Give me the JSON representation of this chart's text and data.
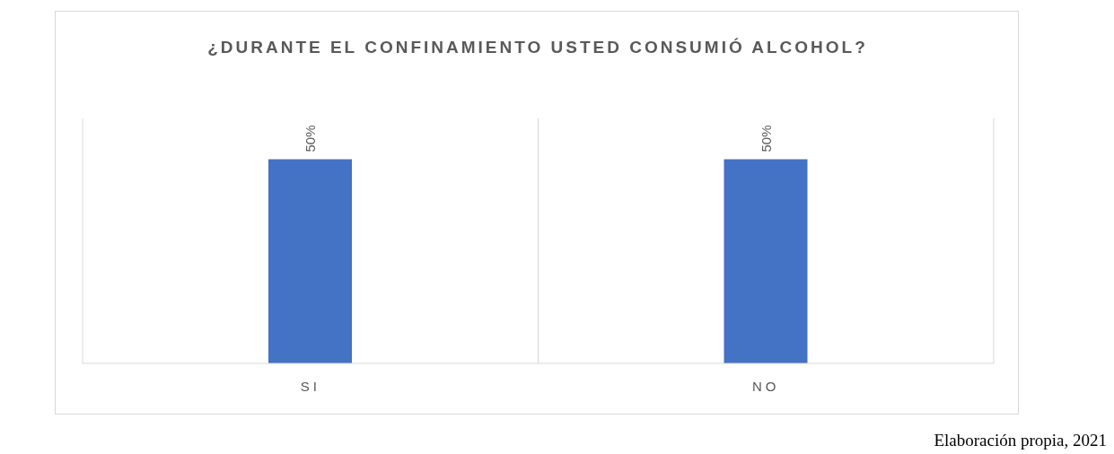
{
  "chart_data": {
    "type": "bar",
    "title": "¿DURANTE EL CONFINAMIENTO USTED CONSUMIÓ ALCOHOL?",
    "categories": [
      "SI",
      "NO"
    ],
    "values": [
      50,
      50
    ],
    "value_labels": [
      "50%",
      "50%"
    ],
    "color": "#4472c4",
    "ylim": [
      0,
      60
    ],
    "grid": "x",
    "annotations": [
      "Elaboración propia, 2021"
    ]
  }
}
